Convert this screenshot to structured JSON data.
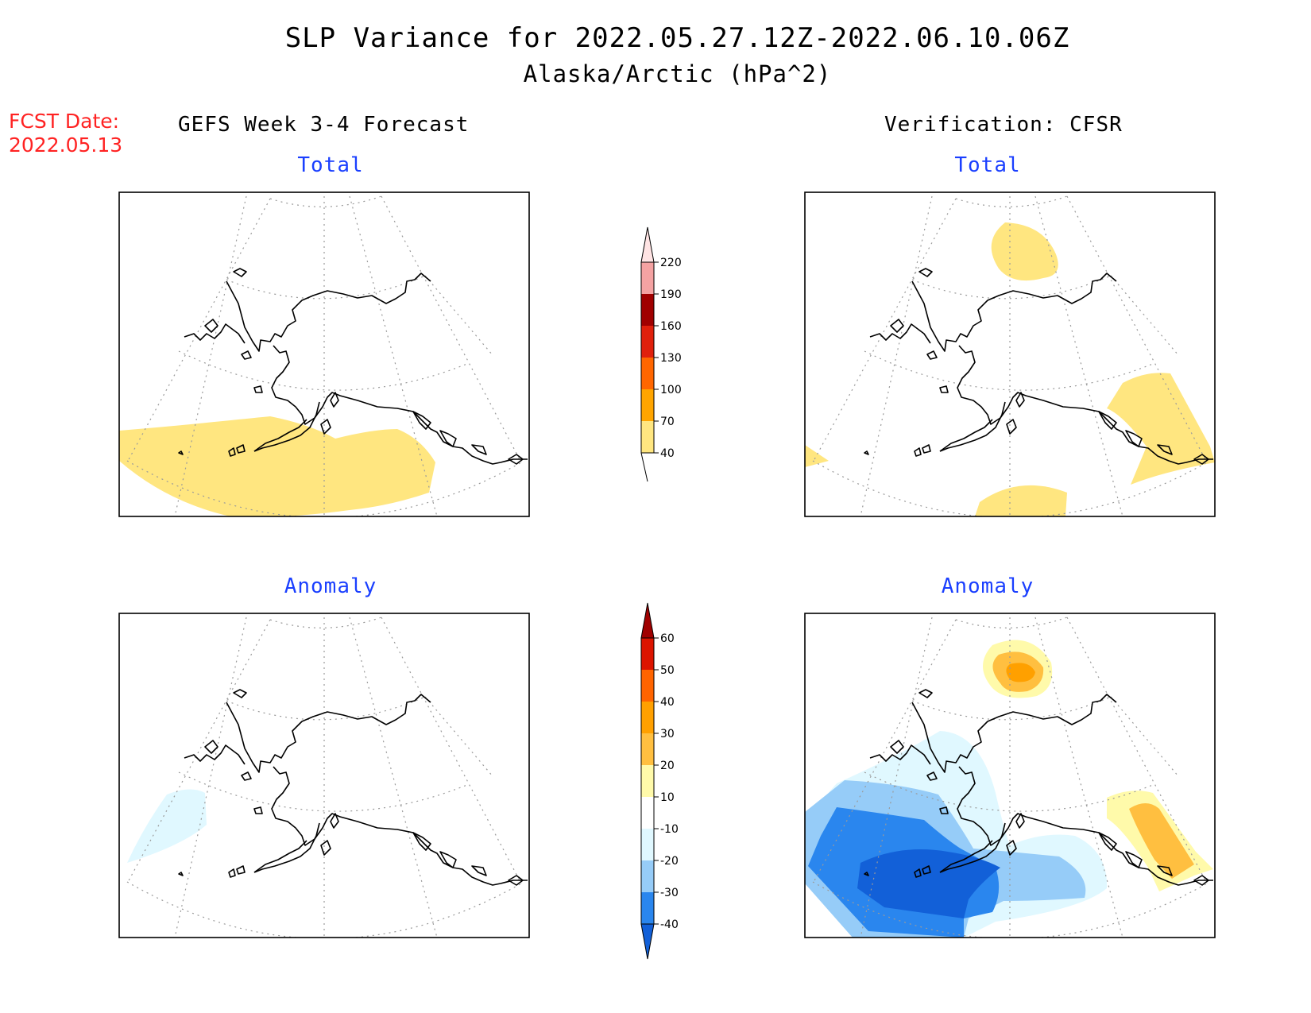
{
  "header": {
    "title": "SLP Variance for 2022.05.27.12Z-2022.06.10.06Z",
    "subtitle": "Alaska/Arctic (hPa^2)",
    "fcst_label": "FCST Date:",
    "fcst_date": "2022.05.13"
  },
  "columns": {
    "left": "GEFS Week 3-4 Forecast",
    "right": "Verification: CFSR"
  },
  "panels": {
    "total_label": "Total",
    "anomaly_label": "Anomaly"
  },
  "colorbars": {
    "total": {
      "ticks": [
        "40",
        "70",
        "100",
        "130",
        "160",
        "190",
        "220"
      ],
      "colors": [
        "#ffe680",
        "#ffa500",
        "#ff6600",
        "#e0200c",
        "#a00000",
        "#f4a2a2",
        "#ffe4e4"
      ]
    },
    "anomaly": {
      "ticks": [
        "-40",
        "-30",
        "-20",
        "-10",
        "10",
        "20",
        "30",
        "40",
        "50",
        "60"
      ],
      "colors": [
        "#1260d8",
        "#2a86ee",
        "#96ccf8",
        "#e0f8ff",
        "#ffffff",
        "#fffaaa",
        "#ffbf40",
        "#ffa000",
        "#ff6400",
        "#dc1400",
        "#a00000"
      ]
    }
  }
}
